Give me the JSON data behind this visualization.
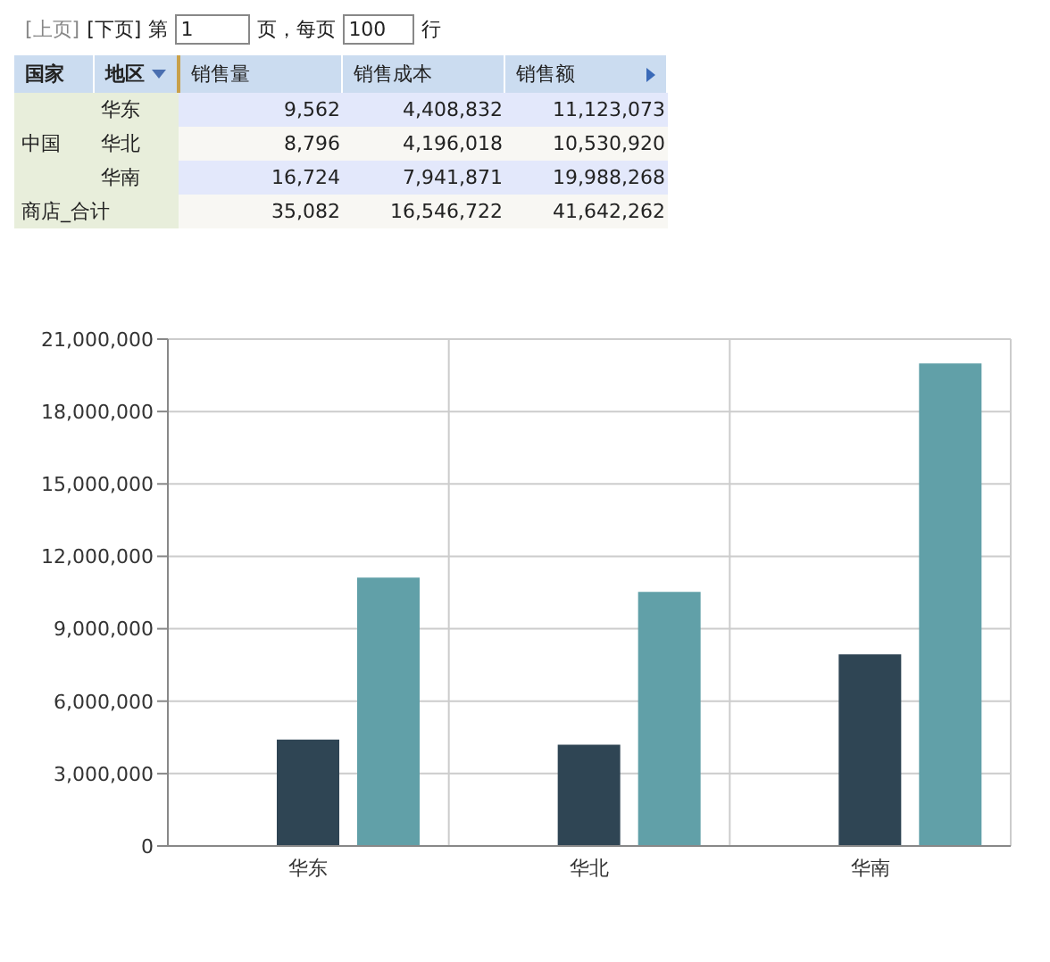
{
  "chart_data": [
    {
      "type": "other",
      "annotations": [
        "[上页]",
        "[下页]",
        "第",
        "1",
        "页，每页",
        "100",
        "行",
        "国家",
        "地区",
        "销售量",
        "销售成本",
        "销售额",
        "中国",
        "华东",
        "华北",
        "华南",
        "9,562",
        "4,408,832",
        "11,123,073",
        "8,796",
        "4,196,018",
        "10,530,920",
        "16,724",
        "7,941,871",
        "19,988,268",
        "商店_合计",
        "35,082",
        "16,546,722",
        "41,642,262"
      ]
    },
    {
      "type": "bar",
      "categories": [
        "华东",
        "华北",
        "华南"
      ],
      "series": [
        {
          "color": "#c23531",
          "values": [
            9562,
            8796,
            16724
          ]
        },
        {
          "color": "#2f4554",
          "values": [
            4408832,
            4196018,
            7941871
          ]
        },
        {
          "color": "#61a0a8",
          "values": [
            11123073,
            10530920,
            19988268
          ]
        }
      ],
      "ylim": [
        0,
        21000000
      ],
      "yticks": [
        0,
        {
          "value": 3000000,
          "label": "3,000,000"
        },
        {
          "value": 6000000,
          "label": "6,000,000"
        },
        {
          "value": 9000000,
          "label": "9,000,000"
        },
        {
          "value": 12000000,
          "label": "12,000,000"
        },
        {
          "value": 15000000,
          "label": "15,000,000"
        },
        {
          "value": 18000000,
          "label": "18,000,000"
        },
        {
          "value": 21000000,
          "label": "21,000,000"
        }
      ],
      "grid": true
    }
  ]
}
